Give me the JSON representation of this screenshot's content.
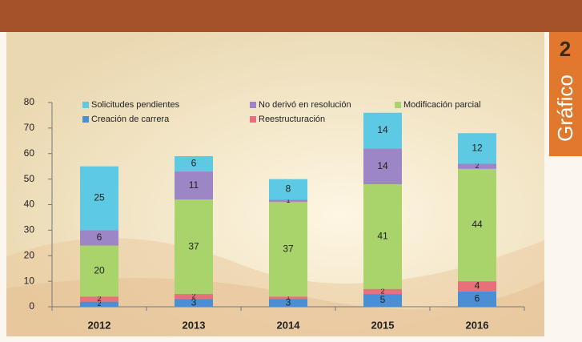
{
  "chart_data": {
    "type": "stacked_bar",
    "annotations": [
      "Gráfico",
      "2"
    ],
    "categories": [
      "2012",
      "2013",
      "2014",
      "2015",
      "2016"
    ],
    "series": [
      {
        "name": "Creación de carrera",
        "color": "#4a8fd6",
        "values": [
          2,
          3,
          3,
          5,
          6
        ]
      },
      {
        "name": "Reestructuración",
        "color": "#e8707a",
        "values": [
          2,
          2,
          1,
          2,
          4
        ]
      },
      {
        "name": "Modificación parcial",
        "color": "#a9d46c",
        "values": [
          20,
          37,
          37,
          41,
          44
        ]
      },
      {
        "name": "No derivó en resolución",
        "color": "#9c86c6",
        "values": [
          6,
          11,
          1,
          14,
          2
        ]
      },
      {
        "name": "Solicitudes pendientes",
        "color": "#5ec9e2",
        "values": [
          25,
          6,
          8,
          14,
          12
        ]
      }
    ],
    "ylim": [
      0,
      80
    ],
    "yticks": [
      0,
      10,
      20,
      30,
      40,
      50,
      60,
      70,
      80
    ],
    "grid": false
  }
}
